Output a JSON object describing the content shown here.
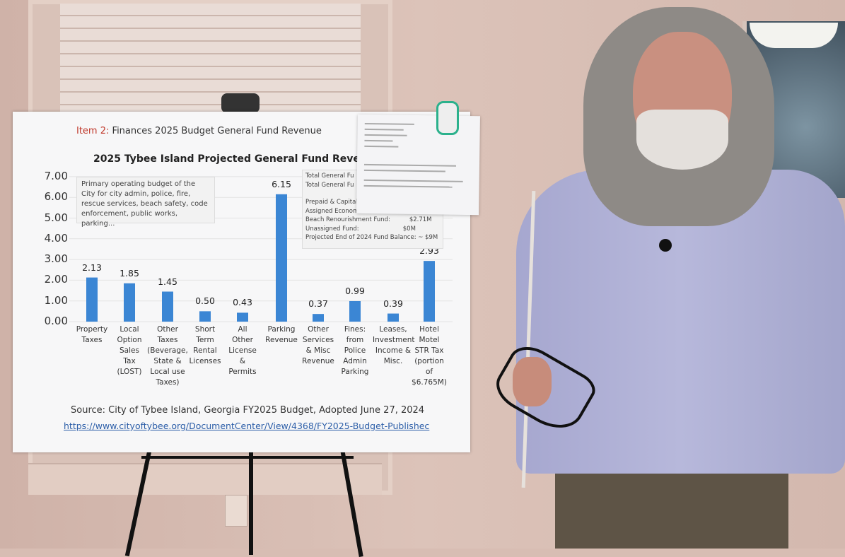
{
  "poster": {
    "item_label": "Item 2:",
    "item_rest": "Finances   2025 Budget General Fund Revenue",
    "description": "Primary operating budget of the City for city admin, police, fire, rescue services, beach safety, code enforcement, public works, parking...",
    "fund_lines": [
      "Total General Fu",
      "Total General Fu",
      "",
      "Prepaid & Capital",
      "Assigned Econom",
      "Beach Renourishment Fund:          $2.71M",
      "Unassigned Fund:                       $0M",
      "Projected End of 2024 Fund Balance: ~ $9M"
    ],
    "source": "Source: City of Tybee Island, Georgia FY2025 Budget, Adopted June 27, 2024",
    "url": "https://www.cityoftybee.org/DocumentCenter/View/4368/FY2025-Budget-Publishec"
  },
  "chart_data": {
    "type": "bar",
    "title": "2025 Tybee Island Projected General Fund Revenue (Mi",
    "ylim": [
      0,
      7
    ],
    "yticks": [
      "0.00",
      "1.00",
      "2.00",
      "3.00",
      "4.00",
      "5.00",
      "6.00",
      "7.00"
    ],
    "grid": true,
    "color": "#3b86d4",
    "categories": [
      "Property\nTaxes",
      "Local\nOption\nSales\nTax\n(LOST)",
      "Other\nTaxes\n(Beverage,\nState &\nLocal use\nTaxes)",
      "Short\nTerm\nRental\nLicenses",
      "All\nOther\nLicense\n&\nPermits",
      "Parking\nRevenue",
      "Other\nServices\n& Misc\nRevenue",
      "Fines:\nfrom\nPolice\nAdmin\nParking",
      "Leases,\nInvestment\nIncome &\nMisc.",
      "Hotel\nMotel\nSTR Tax\n(portion\nof\n$6.765M)"
    ],
    "values": [
      2.13,
      1.85,
      1.45,
      0.5,
      0.43,
      6.15,
      0.37,
      0.99,
      0.39,
      2.93
    ],
    "value_labels": [
      "2.13",
      "1.85",
      "1.45",
      "0.50",
      "0.43",
      "6.15",
      "0.37",
      "0.99",
      "0.39",
      "2.93"
    ]
  }
}
